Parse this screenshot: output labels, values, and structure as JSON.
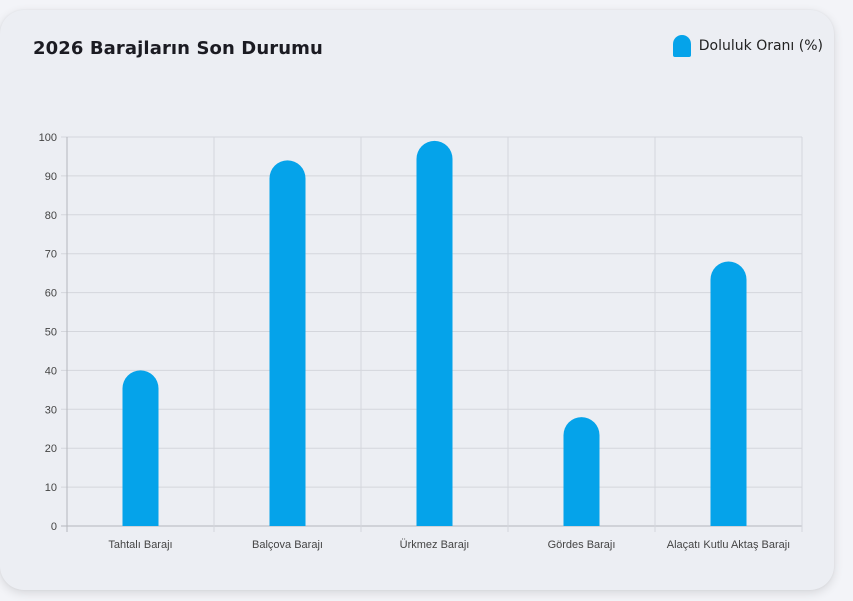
{
  "legend": {
    "label": "Doluluk Oranı (%)"
  },
  "colors": {
    "bar": "#05a3ea",
    "grid": "#d4d6dc",
    "axis": "#b5b7bd"
  },
  "chart_data": {
    "type": "bar",
    "title": "2026 Barajların Son Durumu",
    "xlabel": "",
    "ylabel": "",
    "ylim": [
      0,
      100
    ],
    "yticks": [
      0,
      10,
      20,
      30,
      40,
      50,
      60,
      70,
      80,
      90,
      100
    ],
    "grid": true,
    "legend_position": "top-right",
    "categories": [
      "Tahtalı Barajı",
      "Balçova Barajı",
      "Ürkmez Barajı",
      "Gördes Barajı",
      "Alaçatı Kutlu Aktaş Barajı"
    ],
    "series": [
      {
        "name": "Doluluk Oranı (%)",
        "values": [
          40,
          94,
          99,
          28,
          68
        ]
      }
    ]
  }
}
